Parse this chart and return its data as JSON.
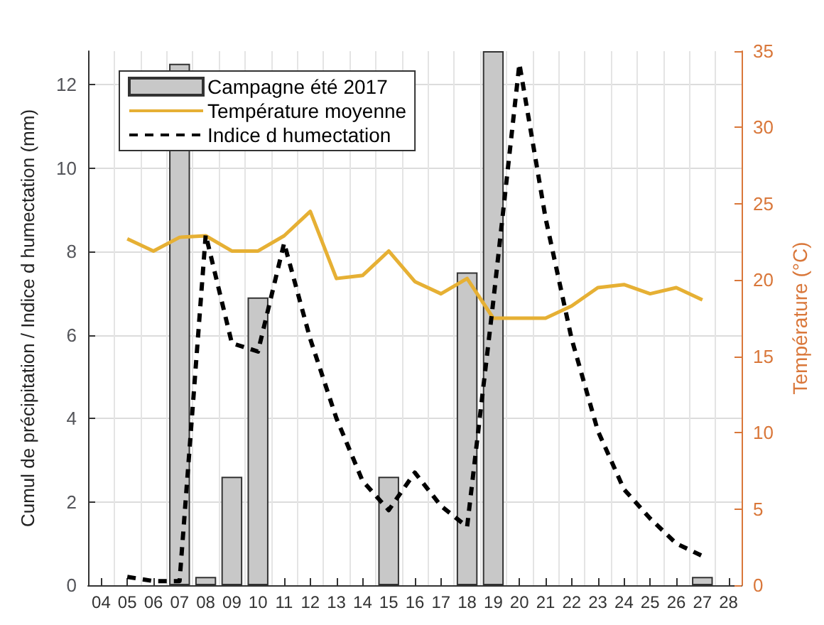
{
  "chart_data": {
    "type": "bar",
    "ylabel": "Cumul de précipitation / Indice d humectation (mm)",
    "y2label": "Température (°C)",
    "categories": [
      "04",
      "05",
      "06",
      "07",
      "08",
      "09",
      "10",
      "11",
      "12",
      "13",
      "14",
      "15",
      "16",
      "17",
      "18",
      "19",
      "20",
      "21",
      "22",
      "23",
      "24",
      "25",
      "26",
      "27",
      "28"
    ],
    "series": [
      {
        "name": "Campagne été 2017",
        "color": "#c8c8c8",
        "values": [
          null,
          null,
          null,
          12.5,
          0.2,
          2.6,
          6.9,
          null,
          null,
          null,
          null,
          2.6,
          null,
          null,
          7.5,
          12.8,
          null,
          null,
          null,
          null,
          null,
          null,
          null,
          0.2,
          null
        ]
      },
      {
        "name": "Température moyenne",
        "type": "line",
        "axis": "y2",
        "color": "#e6b034",
        "line_style": "solid",
        "values": [
          null,
          22.7,
          21.9,
          22.8,
          22.9,
          21.9,
          21.9,
          22.9,
          24.5,
          20.1,
          20.3,
          21.9,
          19.9,
          19.1,
          20.1,
          17.5,
          17.5,
          17.5,
          18.3,
          19.5,
          19.7,
          19.1,
          19.5,
          18.7,
          null
        ]
      },
      {
        "name": "Indice d humectation",
        "type": "line",
        "color": "#000000",
        "line_style": "dashed",
        "values": [
          null,
          0.2,
          0.1,
          0.1,
          8.4,
          5.8,
          5.6,
          8.2,
          5.9,
          4.0,
          2.5,
          1.8,
          2.7,
          1.9,
          1.4,
          6.8,
          12.5,
          8.8,
          5.9,
          3.7,
          2.3,
          1.6,
          1.0,
          0.7,
          null
        ]
      }
    ],
    "ylim": [
      0,
      12.8
    ],
    "yticks": [
      0,
      2,
      4,
      6,
      8,
      10,
      12
    ],
    "y2lim": [
      0,
      35
    ],
    "y2ticks": [
      0,
      5,
      10,
      15,
      20,
      25,
      30,
      35
    ],
    "grid": true,
    "legend": "top left",
    "marker": "none"
  }
}
